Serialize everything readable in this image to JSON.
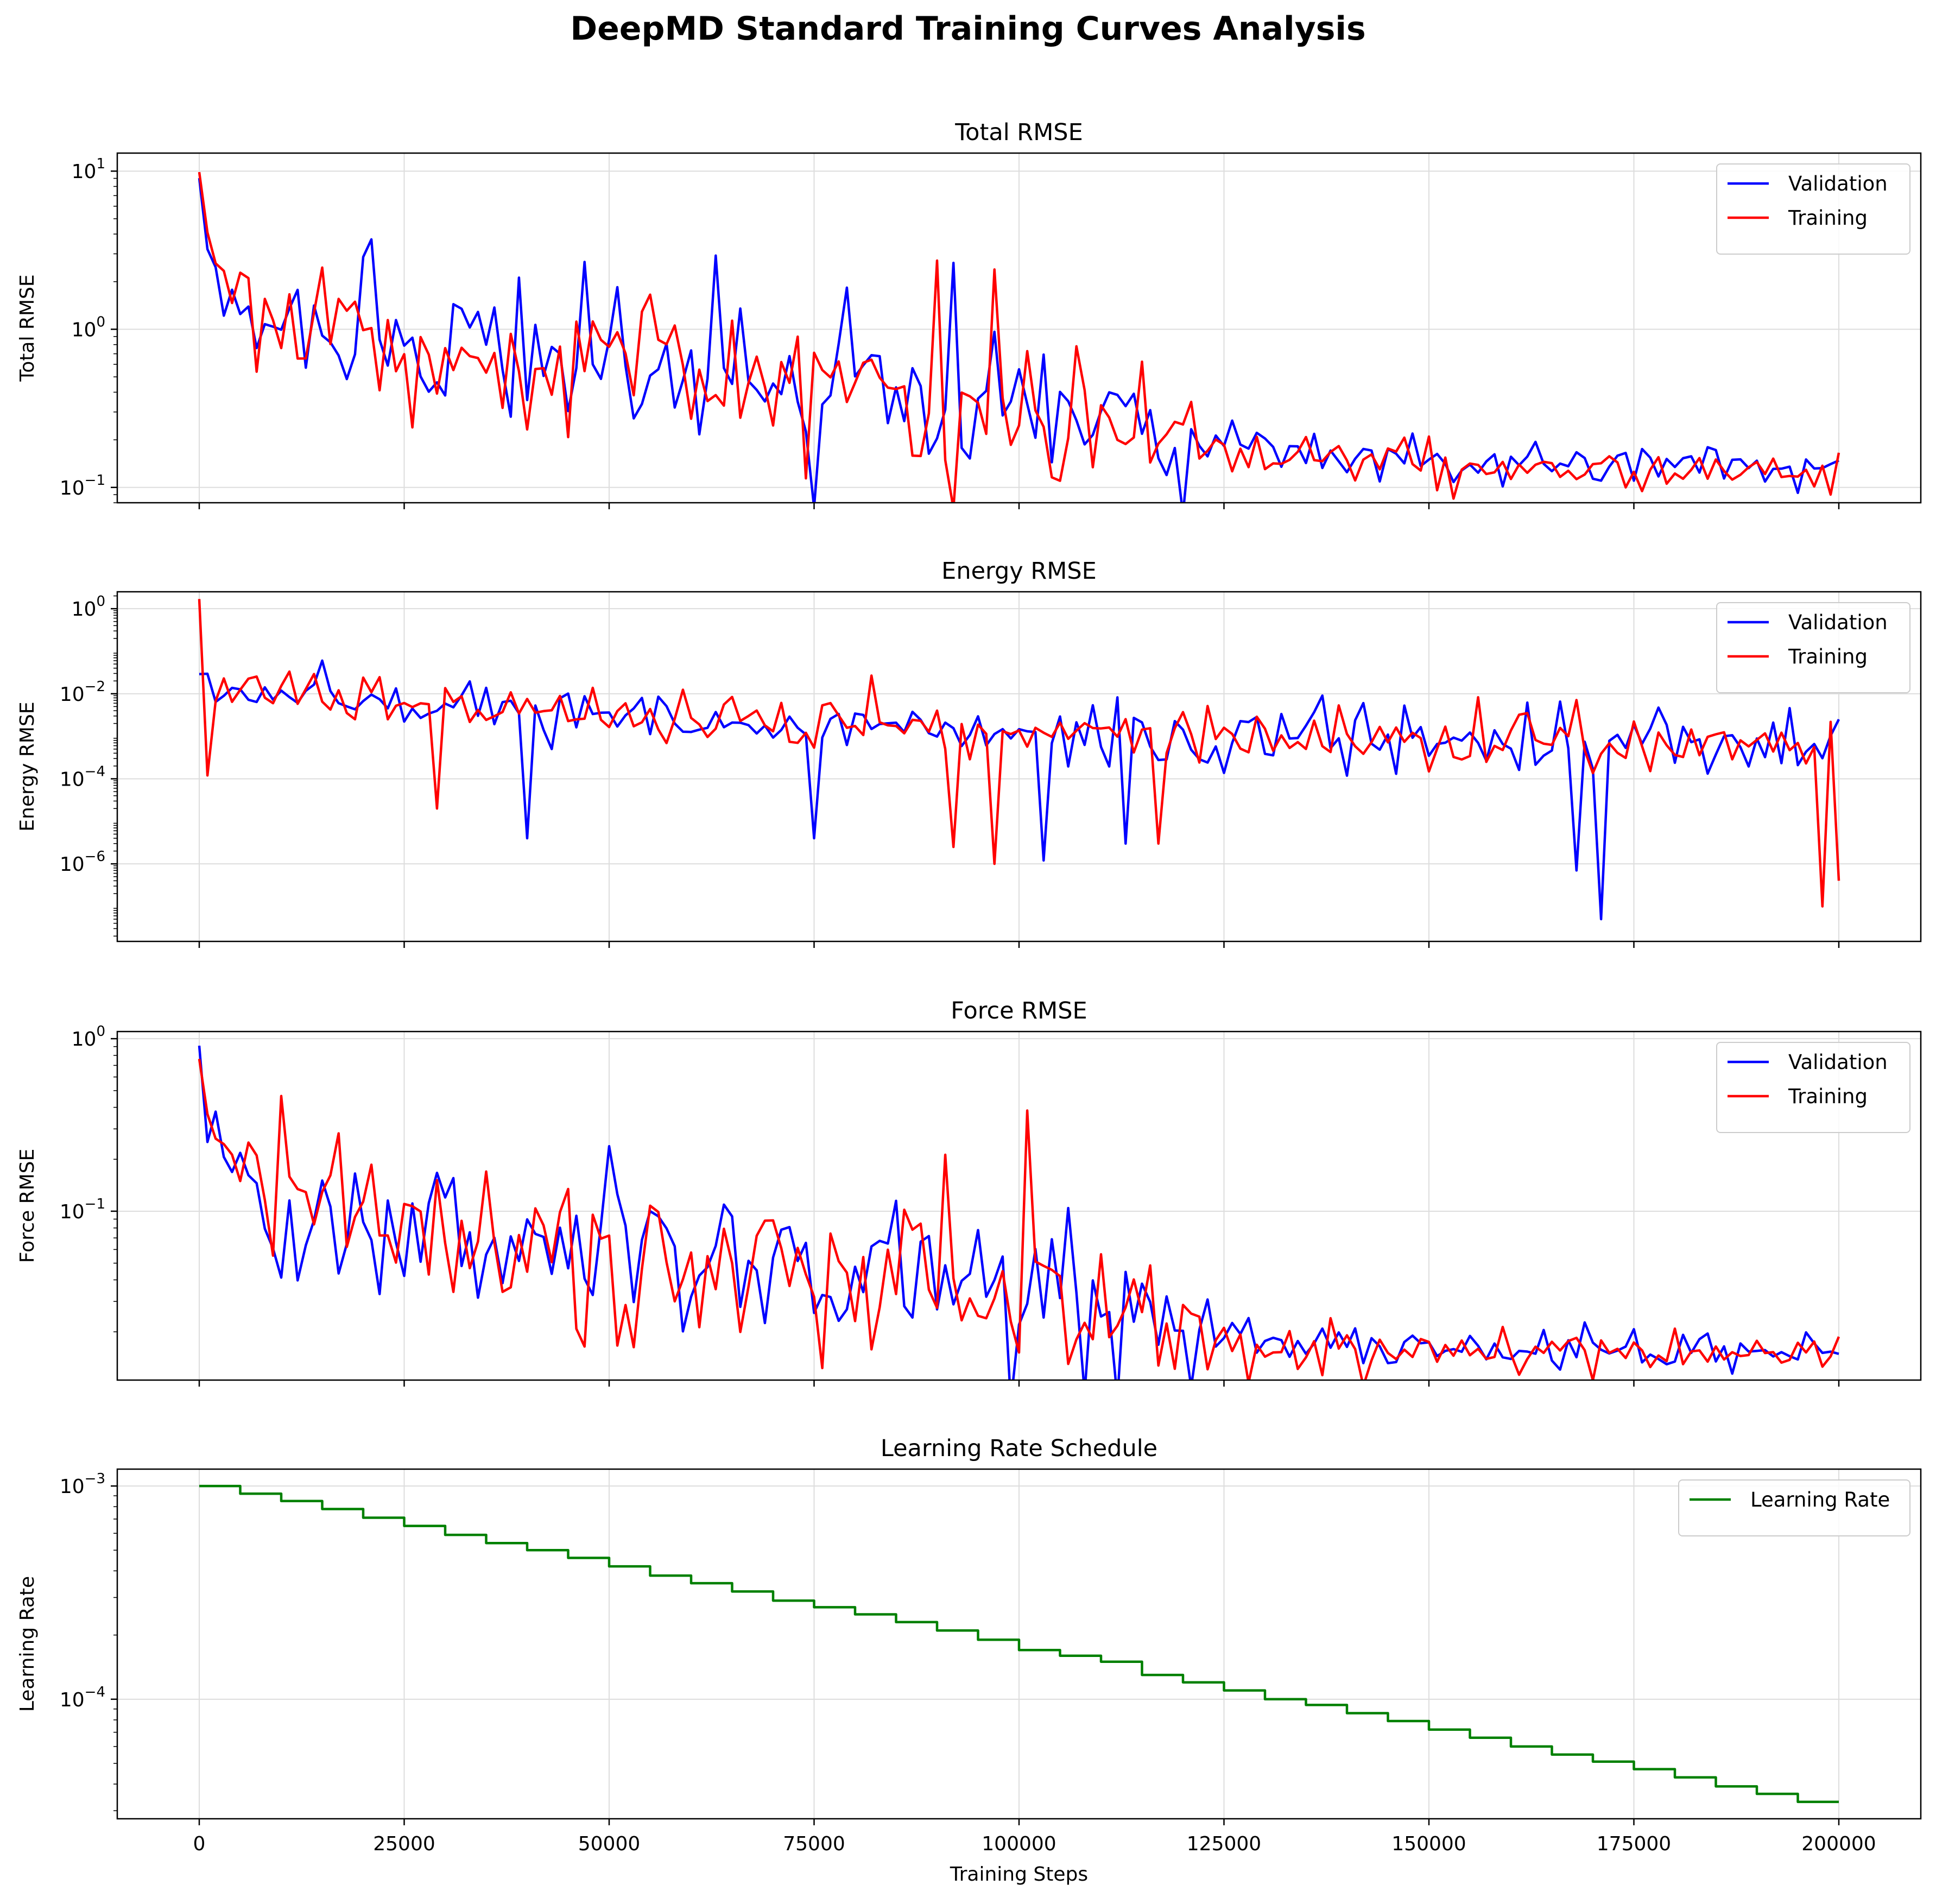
{
  "figure": {
    "title": "DeepMD Standard Training Curves Analysis",
    "xlabel": "Training Steps"
  },
  "chart_data": [
    {
      "type": "line",
      "title": "Total RMSE",
      "xlabel": "",
      "ylabel": "Total RMSE",
      "yscale": "log",
      "xlim": [
        -10000,
        210000
      ],
      "ylim": [
        0.08,
        13
      ],
      "x_ticks": [
        0,
        25000,
        50000,
        75000,
        100000,
        125000,
        150000,
        175000,
        200000
      ],
      "y_ticks": [
        {
          "value": 0.1,
          "exp": "−1"
        },
        {
          "value": 1,
          "exp": "0"
        },
        {
          "value": 10,
          "exp": "1"
        }
      ],
      "grid": true,
      "legend_position": "upper right",
      "x_start": 0,
      "x_end": 200000,
      "x_step": 1000,
      "series": [
        {
          "name": "Validation",
          "color": "#0000ff",
          "anchors": [
            [
              0,
              9.0
            ],
            [
              1000,
              3.5
            ],
            [
              2000,
              2.5
            ],
            [
              5000,
              1.6
            ],
            [
              10000,
              1.1
            ],
            [
              20000,
              0.85
            ],
            [
              30000,
              0.72
            ],
            [
              50000,
              0.55
            ],
            [
              75000,
              0.45
            ],
            [
              100000,
              0.32
            ],
            [
              110000,
              0.27
            ],
            [
              125000,
              0.18
            ],
            [
              150000,
              0.155
            ],
            [
              175000,
              0.145
            ],
            [
              200000,
              0.135
            ]
          ],
          "noise": [
            [
              0,
              0.1
            ],
            [
              5000,
              0.25
            ],
            [
              20000,
              0.4
            ],
            [
              90000,
              0.45
            ],
            [
              120000,
              0.3
            ],
            [
              130000,
              0.15
            ],
            [
              200000,
              0.11
            ]
          ]
        },
        {
          "name": "Training",
          "color": "#ff0000",
          "anchors": [
            [
              0,
              10.5
            ],
            [
              1000,
              3.8
            ],
            [
              2000,
              2.6
            ],
            [
              5000,
              1.6
            ],
            [
              10000,
              1.0
            ],
            [
              20000,
              0.85
            ],
            [
              30000,
              0.7
            ],
            [
              50000,
              0.52
            ],
            [
              75000,
              0.42
            ],
            [
              100000,
              0.3
            ],
            [
              110000,
              0.25
            ],
            [
              125000,
              0.17
            ],
            [
              150000,
              0.145
            ],
            [
              175000,
              0.135
            ],
            [
              200000,
              0.12
            ]
          ],
          "noise": [
            [
              0,
              0.1
            ],
            [
              5000,
              0.25
            ],
            [
              20000,
              0.42
            ],
            [
              90000,
              0.45
            ],
            [
              120000,
              0.3
            ],
            [
              130000,
              0.15
            ],
            [
              200000,
              0.11
            ]
          ]
        }
      ]
    },
    {
      "type": "line",
      "title": "Energy RMSE",
      "xlabel": "",
      "ylabel": "Energy RMSE",
      "yscale": "log",
      "xlim": [
        -10000,
        210000
      ],
      "ylim": [
        1.5e-08,
        2.5
      ],
      "x_ticks": [
        0,
        25000,
        50000,
        75000,
        100000,
        125000,
        150000,
        175000,
        200000
      ],
      "y_ticks": [
        {
          "value": 1e-06,
          "exp": "−6"
        },
        {
          "value": 0.0001,
          "exp": "−4"
        },
        {
          "value": 0.01,
          "exp": "−2"
        },
        {
          "value": 1,
          "exp": "0"
        }
      ],
      "grid": true,
      "legend_position": "upper right",
      "x_start": 0,
      "x_end": 200000,
      "x_step": 1000,
      "series": [
        {
          "name": "Validation",
          "color": "#0000ff",
          "anchors": [
            [
              0,
              0.03
            ],
            [
              2000,
              0.012
            ],
            [
              10000,
              0.012
            ],
            [
              25000,
              0.006
            ],
            [
              50000,
              0.003
            ],
            [
              100000,
              0.0012
            ],
            [
              150000,
              0.0007
            ],
            [
              200000,
              0.0004
            ]
          ],
          "noise": [
            [
              0,
              0.5
            ],
            [
              200000,
              0.6
            ]
          ],
          "dips": [
            [
              40000,
              4e-06
            ],
            [
              75000,
              4e-06
            ],
            [
              103000,
              1.2e-06
            ],
            [
              113000,
              3e-06
            ],
            [
              171000,
              5e-08
            ],
            [
              168000,
              7e-07
            ]
          ]
        },
        {
          "name": "Training",
          "color": "#ff0000",
          "anchors": [
            [
              0,
              1.1
            ],
            [
              500,
              0.05
            ],
            [
              2000,
              0.015
            ],
            [
              10000,
              0.012
            ],
            [
              25000,
              0.006
            ],
            [
              50000,
              0.003
            ],
            [
              100000,
              0.0012
            ],
            [
              150000,
              0.0008
            ],
            [
              200000,
              0.0005
            ]
          ],
          "noise": [
            [
              0,
              0.5
            ],
            [
              200000,
              0.6
            ]
          ],
          "dips": [
            [
              1000,
              0.00012
            ],
            [
              29000,
              2e-05
            ],
            [
              92000,
              2.5e-06
            ],
            [
              97000,
              1e-06
            ],
            [
              117000,
              3e-06
            ],
            [
              198000,
              1e-07
            ],
            [
              200000,
              4e-07
            ]
          ]
        }
      ]
    },
    {
      "type": "line",
      "title": "Force RMSE",
      "xlabel": "",
      "ylabel": "Force RMSE",
      "yscale": "log",
      "xlim": [
        -10000,
        210000
      ],
      "ylim": [
        0.0105,
        1.1
      ],
      "x_ticks": [
        0,
        25000,
        50000,
        75000,
        100000,
        125000,
        150000,
        175000,
        200000
      ],
      "y_ticks": [
        {
          "value": 0.1,
          "exp": "−1"
        },
        {
          "value": 1,
          "exp": "0"
        }
      ],
      "grid": true,
      "legend_position": "upper right",
      "x_start": 0,
      "x_end": 200000,
      "x_step": 1000,
      "series": [
        {
          "name": "Validation",
          "color": "#0000ff",
          "anchors": [
            [
              0,
              0.9
            ],
            [
              1000,
              0.35
            ],
            [
              2000,
              0.25
            ],
            [
              5000,
              0.16
            ],
            [
              10000,
              0.11
            ],
            [
              20000,
              0.085
            ],
            [
              30000,
              0.072
            ],
            [
              50000,
              0.055
            ],
            [
              75000,
              0.045
            ],
            [
              100000,
              0.032
            ],
            [
              110000,
              0.027
            ],
            [
              125000,
              0.0185
            ],
            [
              150000,
              0.0165
            ],
            [
              175000,
              0.0158
            ],
            [
              200000,
              0.0155
            ]
          ],
          "noise": [
            [
              0,
              0.1
            ],
            [
              5000,
              0.25
            ],
            [
              20000,
              0.4
            ],
            [
              90000,
              0.45
            ],
            [
              120000,
              0.3
            ],
            [
              130000,
              0.15
            ],
            [
              200000,
              0.1
            ]
          ]
        },
        {
          "name": "Training",
          "color": "#ff0000",
          "anchors": [
            [
              0,
              0.85
            ],
            [
              1000,
              0.38
            ],
            [
              2000,
              0.26
            ],
            [
              5000,
              0.16
            ],
            [
              10000,
              0.1
            ],
            [
              20000,
              0.085
            ],
            [
              30000,
              0.07
            ],
            [
              50000,
              0.052
            ],
            [
              75000,
              0.042
            ],
            [
              100000,
              0.03
            ],
            [
              110000,
              0.025
            ],
            [
              125000,
              0.018
            ],
            [
              150000,
              0.016
            ],
            [
              175000,
              0.015
            ],
            [
              200000,
              0.0145
            ]
          ],
          "noise": [
            [
              0,
              0.1
            ],
            [
              5000,
              0.25
            ],
            [
              20000,
              0.42
            ],
            [
              90000,
              0.45
            ],
            [
              120000,
              0.3
            ],
            [
              130000,
              0.15
            ],
            [
              200000,
              0.1
            ]
          ]
        }
      ]
    },
    {
      "type": "line",
      "title": "Learning Rate Schedule",
      "xlabel": "Training Steps",
      "ylabel": "Learning Rate",
      "yscale": "log",
      "xlim": [
        -10000,
        210000
      ],
      "ylim": [
        2.75e-05,
        0.0012
      ],
      "x_ticks": [
        0,
        25000,
        50000,
        75000,
        100000,
        125000,
        150000,
        175000,
        200000
      ],
      "y_ticks": [
        {
          "value": 0.0001,
          "exp": "−4"
        },
        {
          "value": 0.001,
          "exp": "−3"
        }
      ],
      "grid": true,
      "legend_position": "upper right",
      "series": [
        {
          "name": "Learning Rate",
          "color": "#008000",
          "style": "steps-post",
          "x": [
            0,
            5000,
            10000,
            15000,
            20000,
            25000,
            30000,
            35000,
            40000,
            45000,
            50000,
            55000,
            60000,
            65000,
            70000,
            75000,
            80000,
            85000,
            90000,
            95000,
            100000,
            105000,
            110000,
            115000,
            120000,
            125000,
            130000,
            135000,
            140000,
            145000,
            150000,
            155000,
            160000,
            165000,
            170000,
            175000,
            180000,
            185000,
            190000,
            195000,
            200000
          ],
          "y": [
            0.001,
            0.00092,
            0.00085,
            0.00078,
            0.00071,
            0.00065,
            0.00059,
            0.00054,
            0.0005,
            0.00046,
            0.00042,
            0.00038,
            0.00035,
            0.00032,
            0.00029,
            0.00027,
            0.00025,
            0.00023,
            0.00021,
            0.00019,
            0.00017,
            0.00016,
            0.00015,
            0.00013,
            0.00012,
            0.00011,
            0.0001,
            9.4e-05,
            8.6e-05,
            7.9e-05,
            7.2e-05,
            6.6e-05,
            6e-05,
            5.5e-05,
            5.1e-05,
            4.7e-05,
            4.3e-05,
            3.9e-05,
            3.6e-05,
            3.3e-05,
            3.3e-05
          ]
        }
      ]
    }
  ]
}
